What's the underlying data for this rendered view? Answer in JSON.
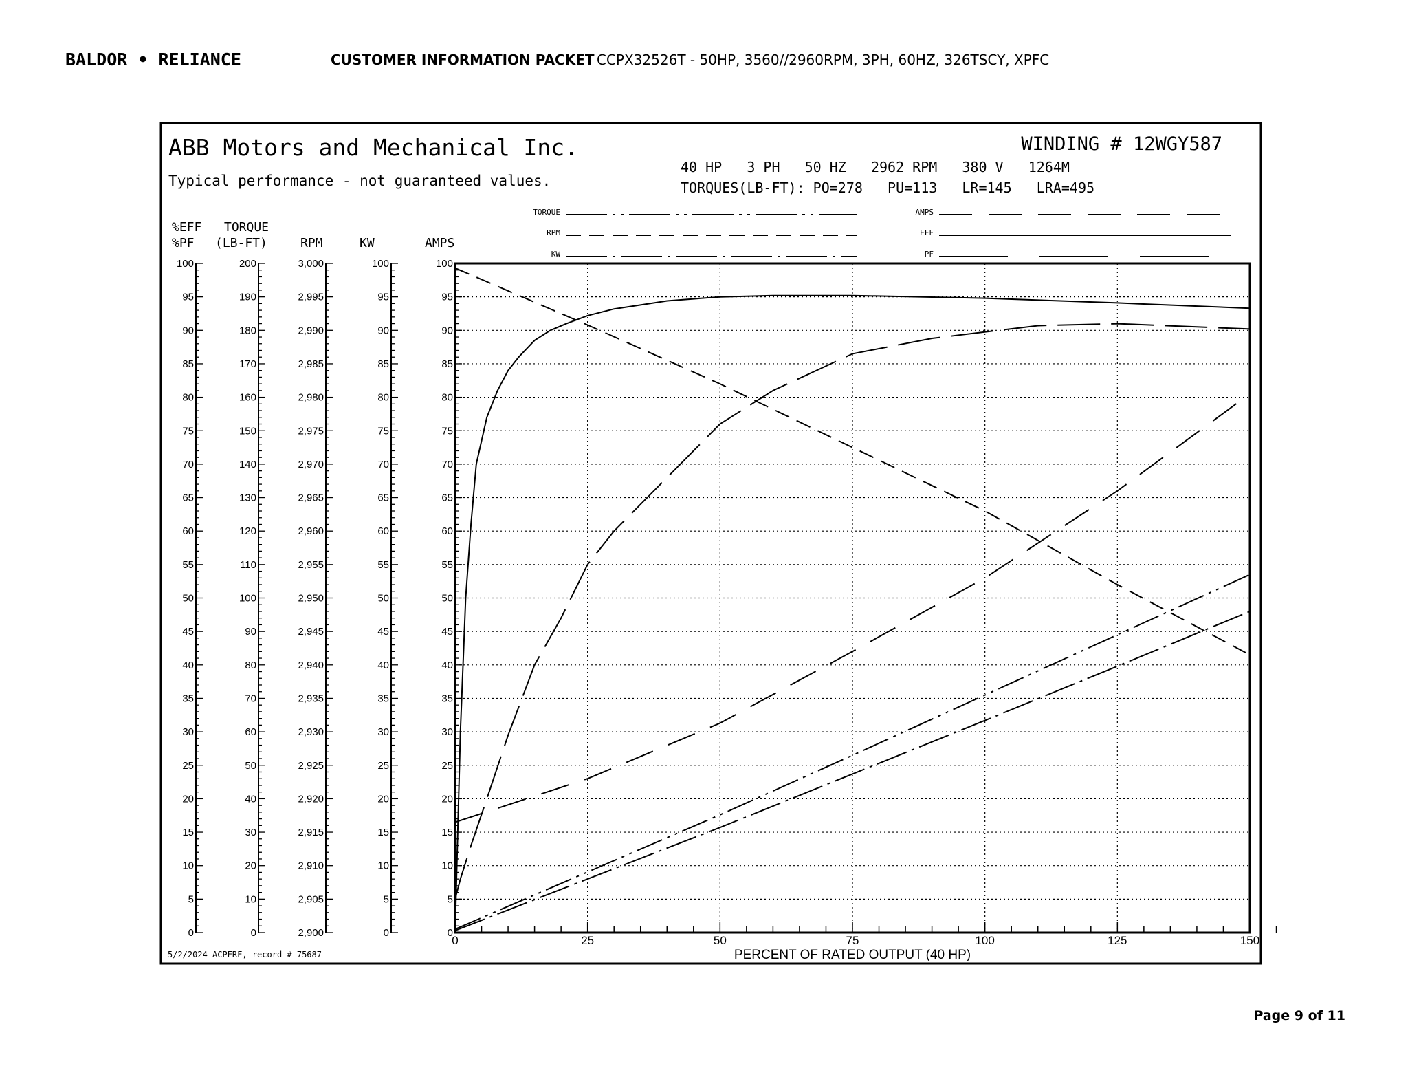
{
  "header": {
    "logo": "BALDOR • RELIANCE",
    "section_title": "CUSTOMER INFORMATION PACKET",
    "model_line": "CCPX32526T - 50HP, 3560//2960RPM, 3PH, 60HZ, 326TSCY, XPFC"
  },
  "chart_header": {
    "company": "ABB Motors and Mechanical Inc.",
    "disclaimer": "Typical performance - not guaranteed values.",
    "winding": "WINDING # 12WGY587",
    "rating_line": "40 HP   3 PH   50 HZ   2962 RPM   380 V   1264M",
    "torques_line": "TORQUES(LB-FT): PO=278   PU=113   LR=145   LRA=495"
  },
  "footer": {
    "record": "5/2/2024 ACPERF, record # 75687",
    "page": "Page 9 of 11"
  },
  "chart_data": {
    "type": "line",
    "xlabel": "PERCENT OF RATED OUTPUT (40 HP)",
    "xlim": [
      0,
      150
    ],
    "x_ticks": [
      "0",
      "25",
      "50",
      "75",
      "100",
      "125",
      "150"
    ],
    "grid": true,
    "legend_placement": "top",
    "axes": [
      {
        "header1": "%EFF",
        "header2": "%PF",
        "min": 0,
        "max": 100,
        "step": 5,
        "ticks": [
          "0",
          "5",
          "10",
          "15",
          "20",
          "25",
          "30",
          "35",
          "40",
          "45",
          "50",
          "55",
          "60",
          "65",
          "70",
          "75",
          "80",
          "85",
          "90",
          "95",
          "100"
        ]
      },
      {
        "header1": "TORQUE",
        "header2": "(LB-FT)",
        "min": 0,
        "max": 200,
        "step": 10,
        "ticks": [
          "0",
          "10",
          "20",
          "30",
          "40",
          "50",
          "60",
          "70",
          "80",
          "90",
          "100",
          "110",
          "120",
          "130",
          "140",
          "150",
          "160",
          "170",
          "180",
          "190",
          "200"
        ]
      },
      {
        "header1": "",
        "header2": "RPM",
        "min": 2900,
        "max": 3000,
        "step": 5,
        "ticks": [
          "2,900",
          "2,905",
          "2,910",
          "2,915",
          "2,920",
          "2,925",
          "2,930",
          "2,935",
          "2,940",
          "2,945",
          "2,950",
          "2,955",
          "2,960",
          "2,965",
          "2,970",
          "2,975",
          "2,980",
          "2,985",
          "2,990",
          "2,995",
          "3,000"
        ]
      },
      {
        "header1": "",
        "header2": "KW",
        "min": 0,
        "max": 100,
        "step": 5,
        "ticks": [
          "0",
          "5",
          "10",
          "15",
          "20",
          "25",
          "30",
          "35",
          "40",
          "45",
          "50",
          "55",
          "60",
          "65",
          "70",
          "75",
          "80",
          "85",
          "90",
          "95",
          "100"
        ]
      },
      {
        "header1": "",
        "header2": "AMPS",
        "min": 0,
        "max": 100,
        "step": 5,
        "ticks": [
          "0",
          "5",
          "10",
          "15",
          "20",
          "25",
          "30",
          "35",
          "40",
          "45",
          "50",
          "55",
          "60",
          "65",
          "70",
          "75",
          "80",
          "85",
          "90",
          "95",
          "100"
        ]
      }
    ],
    "series": [
      {
        "name": "TORQUE",
        "axis": 1,
        "dash": "dash-dot-dot",
        "x": [
          0,
          50,
          75,
          100,
          125,
          150
        ],
        "y": [
          1,
          35.2,
          53,
          71,
          89,
          107
        ]
      },
      {
        "name": "RPM",
        "axis": 2,
        "dash": "short-dash",
        "x": [
          0,
          25,
          50,
          75,
          100,
          125,
          150
        ],
        "y": [
          2999.3,
          2990.8,
          2982,
          2972.5,
          2963,
          2952,
          2941.5
        ]
      },
      {
        "name": "KW",
        "axis": 3,
        "dash": "dash-dot",
        "x": [
          0,
          50,
          75,
          100,
          125,
          150
        ],
        "y": [
          0.3,
          15.7,
          23.7,
          31.7,
          39.8,
          48
        ]
      },
      {
        "name": "AMPS",
        "axis": 4,
        "dash": "long-dash",
        "x": [
          0,
          25,
          50,
          75,
          100,
          125,
          150
        ],
        "y": [
          16.5,
          23,
          31.3,
          42,
          53,
          66,
          80.5
        ]
      },
      {
        "name": "EFF",
        "axis": 0,
        "dash": "solid",
        "x": [
          0,
          1,
          2,
          3,
          4,
          6,
          8,
          10,
          12,
          15,
          18,
          21,
          25,
          30,
          40,
          50,
          60,
          75,
          100,
          125,
          150
        ],
        "y": [
          0,
          30,
          50,
          61,
          70,
          77,
          81,
          84,
          86,
          88.5,
          90,
          91,
          92.2,
          93.2,
          94.4,
          95,
          95.2,
          95.2,
          94.8,
          94.1,
          93.3
        ]
      },
      {
        "name": "PF",
        "axis": 0,
        "dash": "extra-long-dash",
        "x": [
          0,
          1,
          3,
          6,
          10,
          15,
          20,
          25,
          30,
          40,
          50,
          60,
          75,
          90,
          110,
          125,
          150
        ],
        "y": [
          5,
          8,
          13,
          20,
          29.5,
          40,
          47,
          55,
          60,
          68,
          76,
          81,
          86.5,
          88.8,
          90.7,
          91,
          90.2
        ]
      }
    ]
  }
}
